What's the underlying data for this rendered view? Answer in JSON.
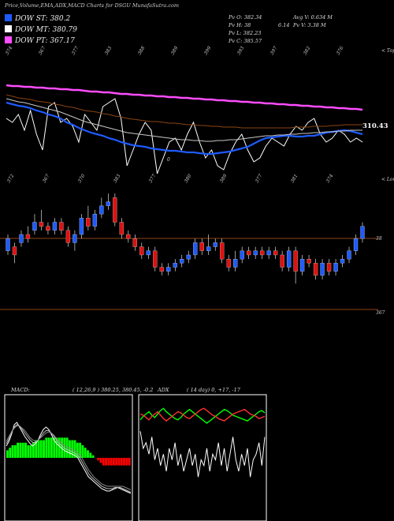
{
  "header": {
    "title": "Price,Volume,EMA,ADX,MACD Charts for DSGU MunafaSutra.com"
  },
  "legend": [
    {
      "label": "DOW ST: 380.2",
      "color": "#1e5bff"
    },
    {
      "label": "DOW MT: 380.79",
      "color": "#ffffff"
    },
    {
      "label": "DOW PT: 367.17",
      "color": "#ff4dff"
    }
  ],
  "stats": {
    "pv_o": "Pv  O: 382.34",
    "pv_h": "Pv  H: 38",
    "pv_l": "Pv  L: 382.23",
    "pv_c": "Pv  C: 385.57",
    "avg_v": "Avg V: 0.634  M",
    "pv_v_pre": "6.14",
    "pv_v": "Pv  V: 3.38  M"
  },
  "colors": {
    "up": "#1e5bff",
    "down": "#e01010",
    "ema_st": "#1e5bff",
    "ema_mt": "#ffffff",
    "ema_lt": "#c8c8c8",
    "ema_brown": "#8b4513",
    "ema_pt": "#ff4dff",
    "level_line": "#8b4513",
    "macd_green": "#00ff00",
    "macd_red": "#ff0000",
    "adx_white": "#ffffff",
    "adx_green": "#00ff00",
    "adx_red": "#ff3030",
    "adx_brown": "#8b4513"
  },
  "chart_data": [
    {
      "type": "line",
      "name": "upper-volume-ema-panel",
      "top_labels": [
        "374",
        "367",
        "377",
        "383",
        "388",
        "389",
        "399",
        "393",
        "397",
        "382",
        "376"
      ],
      "top_right_label": "< Tops",
      "bottom_labels": [
        "372",
        "367",
        "370",
        "383",
        "377",
        "380",
        "389",
        "377",
        "381",
        "374"
      ],
      "bottom_right_label": "< Lows",
      "value_label": "310.43",
      "mid_label": "0",
      "series": [
        {
          "values": [
            180,
            175,
            185,
            165,
            190,
            160,
            140,
            195,
            200,
            175,
            180,
            170,
            150,
            185,
            175,
            165,
            195,
            200,
            205,
            180,
            120,
            140,
            160,
            175,
            165,
            110,
            130,
            150,
            155,
            140,
            160,
            175,
            150,
            130,
            140,
            120,
            115,
            135,
            150,
            160,
            140,
            125,
            130,
            145,
            155,
            150,
            145,
            160,
            170,
            165,
            175,
            180,
            160,
            150,
            155,
            165,
            160,
            150,
            155,
            150
          ]
        },
        {
          "values": [
            200,
            198,
            196,
            195,
            193,
            190,
            188,
            185,
            183,
            180,
            175,
            172,
            168,
            165,
            162,
            160,
            158,
            155,
            153,
            150,
            148,
            146,
            145,
            144,
            142,
            141,
            140,
            139,
            139,
            138,
            137,
            137,
            136,
            135,
            135,
            136,
            137,
            138,
            140,
            142,
            144,
            148,
            152,
            155,
            156,
            157,
            158,
            158,
            157,
            157,
            158,
            158,
            160,
            162,
            163,
            164,
            165,
            164,
            162,
            160
          ]
        },
        {
          "values": [
            205,
            203,
            201,
            200,
            198,
            196,
            194,
            192,
            190,
            188,
            185,
            182,
            179,
            176,
            174,
            172,
            170,
            168,
            166,
            164,
            162,
            161,
            160,
            159,
            158,
            157,
            156,
            155,
            154,
            153,
            153,
            152,
            152,
            151,
            151,
            152,
            152,
            153,
            153,
            154,
            155,
            156,
            157,
            158,
            158,
            159,
            159,
            160,
            160,
            161,
            161,
            162,
            162,
            163,
            163,
            164,
            164,
            165,
            165,
            165
          ]
        },
        {
          "values": [
            210,
            208,
            206,
            205,
            204,
            202,
            201,
            200,
            198,
            197,
            195,
            194,
            192,
            190,
            189,
            188,
            186,
            185,
            183,
            182,
            180,
            179,
            178,
            177,
            176,
            176,
            175,
            174,
            174,
            173,
            172,
            172,
            171,
            171,
            170,
            170,
            169,
            169,
            169,
            168,
            168,
            168,
            168,
            168,
            168,
            168,
            168,
            168,
            169,
            169,
            169,
            170,
            170,
            170,
            171,
            171,
            172,
            172,
            172,
            172
          ]
        },
        {
          "values": [
            222,
            221,
            221,
            220,
            220,
            219,
            219,
            218,
            218,
            217,
            217,
            216,
            216,
            215,
            214,
            214,
            213,
            213,
            212,
            211,
            211,
            210,
            210,
            209,
            209,
            208,
            208,
            207,
            207,
            206,
            206,
            205,
            205,
            204,
            204,
            203,
            203,
            202,
            202,
            201,
            201,
            200,
            200,
            199,
            199,
            198,
            198,
            197,
            197,
            196,
            196,
            195,
            195,
            194,
            194,
            193,
            193,
            192,
            192,
            191
          ]
        }
      ]
    },
    {
      "type": "candlestick",
      "name": "price-panel",
      "level_top": "38",
      "level_bottom": "367",
      "candles": [
        {
          "o": 380,
          "c": 383,
          "h": 384,
          "l": 379
        },
        {
          "o": 381,
          "c": 379,
          "h": 382,
          "l": 377
        },
        {
          "o": 382,
          "c": 384,
          "h": 385,
          "l": 381
        },
        {
          "o": 384,
          "c": 383,
          "h": 386,
          "l": 382
        },
        {
          "o": 385,
          "c": 387,
          "h": 389,
          "l": 384
        },
        {
          "o": 387,
          "c": 386,
          "h": 390,
          "l": 385
        },
        {
          "o": 386,
          "c": 385,
          "h": 387,
          "l": 384
        },
        {
          "o": 385,
          "c": 387,
          "h": 388,
          "l": 384
        },
        {
          "o": 387,
          "c": 385,
          "h": 388,
          "l": 384
        },
        {
          "o": 385,
          "c": 382,
          "h": 386,
          "l": 381
        },
        {
          "o": 382,
          "c": 384,
          "h": 385,
          "l": 380
        },
        {
          "o": 384,
          "c": 388,
          "h": 389,
          "l": 383
        },
        {
          "o": 388,
          "c": 386,
          "h": 391,
          "l": 385
        },
        {
          "o": 386,
          "c": 389,
          "h": 390,
          "l": 385
        },
        {
          "o": 389,
          "c": 391,
          "h": 393,
          "l": 388
        },
        {
          "o": 391,
          "c": 392,
          "h": 394,
          "l": 390
        },
        {
          "o": 393,
          "c": 387,
          "h": 394,
          "l": 386
        },
        {
          "o": 387,
          "c": 384,
          "h": 388,
          "l": 383
        },
        {
          "o": 384,
          "c": 383,
          "h": 385,
          "l": 382
        },
        {
          "o": 383,
          "c": 381,
          "h": 384,
          "l": 380
        },
        {
          "o": 381,
          "c": 379,
          "h": 382,
          "l": 378
        },
        {
          "o": 379,
          "c": 380,
          "h": 381,
          "l": 378
        },
        {
          "o": 380,
          "c": 376,
          "h": 381,
          "l": 375
        },
        {
          "o": 376,
          "c": 375,
          "h": 377,
          "l": 374
        },
        {
          "o": 375,
          "c": 376,
          "h": 377,
          "l": 374
        },
        {
          "o": 376,
          "c": 377,
          "h": 378,
          "l": 375
        },
        {
          "o": 377,
          "c": 378,
          "h": 379,
          "l": 376
        },
        {
          "o": 378,
          "c": 379,
          "h": 380,
          "l": 377
        },
        {
          "o": 379,
          "c": 382,
          "h": 383,
          "l": 378
        },
        {
          "o": 382,
          "c": 380,
          "h": 383,
          "l": 379
        },
        {
          "o": 380,
          "c": 381,
          "h": 384,
          "l": 379
        },
        {
          "o": 381,
          "c": 382,
          "h": 383,
          "l": 380
        },
        {
          "o": 382,
          "c": 378,
          "h": 383,
          "l": 377
        },
        {
          "o": 378,
          "c": 376,
          "h": 379,
          "l": 375
        },
        {
          "o": 376,
          "c": 378,
          "h": 380,
          "l": 375
        },
        {
          "o": 378,
          "c": 380,
          "h": 381,
          "l": 377
        },
        {
          "o": 380,
          "c": 379,
          "h": 381,
          "l": 378
        },
        {
          "o": 379,
          "c": 380,
          "h": 381,
          "l": 378
        },
        {
          "o": 380,
          "c": 379,
          "h": 381,
          "l": 378
        },
        {
          "o": 379,
          "c": 380,
          "h": 381,
          "l": 378
        },
        {
          "o": 380,
          "c": 379,
          "h": 381,
          "l": 378
        },
        {
          "o": 379,
          "c": 376,
          "h": 380,
          "l": 375
        },
        {
          "o": 376,
          "c": 380,
          "h": 381,
          "l": 375
        },
        {
          "o": 380,
          "c": 375,
          "h": 381,
          "l": 372
        },
        {
          "o": 375,
          "c": 378,
          "h": 379,
          "l": 374
        },
        {
          "o": 378,
          "c": 377,
          "h": 379,
          "l": 376
        },
        {
          "o": 377,
          "c": 374,
          "h": 378,
          "l": 373
        },
        {
          "o": 374,
          "c": 377,
          "h": 378,
          "l": 373
        },
        {
          "o": 377,
          "c": 375,
          "h": 378,
          "l": 374
        },
        {
          "o": 375,
          "c": 377,
          "h": 378,
          "l": 374
        },
        {
          "o": 377,
          "c": 378,
          "h": 379,
          "l": 376
        },
        {
          "o": 378,
          "c": 380,
          "h": 381,
          "l": 377
        },
        {
          "o": 380,
          "c": 383,
          "h": 384,
          "l": 379
        },
        {
          "o": 383,
          "c": 386,
          "h": 387,
          "l": 382
        }
      ]
    },
    {
      "type": "bar",
      "name": "macd-panel",
      "title": "MACD:",
      "params": "( 12,26,9 ) 380.25,  380.45,  -0.2",
      "histogram": [
        3,
        4,
        5,
        5,
        6,
        6,
        6,
        6,
        5,
        5,
        6,
        7,
        7,
        7,
        7,
        8,
        8,
        8,
        8,
        8,
        8,
        8,
        8,
        8,
        7,
        7,
        7,
        6,
        6,
        5,
        4,
        3,
        2,
        1,
        0,
        -1,
        -2,
        -3,
        -3,
        -3,
        -3,
        -3,
        -3,
        -3,
        -3,
        -3,
        -3,
        -3
      ],
      "series": [
        {
          "values": [
            10,
            14,
            20,
            28,
            30,
            26,
            22,
            18,
            15,
            12,
            10,
            12,
            15,
            20,
            24,
            26,
            24,
            20,
            15,
            12,
            10,
            8,
            6,
            5,
            4,
            3,
            2,
            0,
            -4,
            -8,
            -12,
            -16,
            -18,
            -20,
            -22,
            -24,
            -26,
            -27,
            -28,
            -28,
            -27,
            -26,
            -25,
            -26,
            -27,
            -28,
            -29,
            -30
          ]
        },
        {
          "values": [
            12,
            16,
            22,
            26,
            28,
            27,
            24,
            21,
            18,
            15,
            13,
            13,
            15,
            18,
            21,
            23,
            23,
            21,
            18,
            15,
            12,
            10,
            8,
            7,
            6,
            5,
            4,
            2,
            -1,
            -5,
            -9,
            -13,
            -16,
            -18,
            -20,
            -22,
            -24,
            -25,
            -26,
            -26,
            -26,
            -25,
            -25,
            -25,
            -26,
            -27,
            -28,
            -29
          ]
        },
        {
          "values": [
            14,
            18,
            22,
            25,
            27,
            27,
            25,
            23,
            20,
            17,
            15,
            14,
            15,
            17,
            19,
            21,
            22,
            21,
            19,
            16,
            14,
            12,
            10,
            9,
            8,
            7,
            6,
            4,
            2,
            -2,
            -6,
            -10,
            -13,
            -16,
            -18,
            -20,
            -22,
            -23,
            -24,
            -24,
            -24,
            -24,
            -24,
            -24,
            -24,
            -25,
            -26,
            -27
          ]
        }
      ]
    },
    {
      "type": "line",
      "name": "adx-panel",
      "title": "ADX",
      "params": "( 14  day) 0,  +17,  -17",
      "series": [
        {
          "values": [
            75,
            60,
            65,
            55,
            70,
            50,
            60,
            45,
            55,
            40,
            60,
            50,
            65,
            45,
            55,
            40,
            50,
            60,
            45,
            55,
            35,
            50,
            45,
            60,
            40,
            55,
            50,
            65,
            45,
            60,
            40,
            55,
            70,
            50,
            40,
            55,
            45,
            60,
            35,
            50,
            55,
            65,
            45,
            70
          ]
        },
        {
          "values": [
            85,
            88,
            90,
            92,
            89,
            87,
            90,
            93,
            95,
            92,
            90,
            88,
            86,
            85,
            87,
            90,
            92,
            94,
            92,
            90,
            88,
            86,
            84,
            82,
            84,
            86,
            88,
            90,
            92,
            94,
            93,
            91,
            89,
            88,
            87,
            86,
            85,
            84,
            86,
            88,
            90,
            92,
            93,
            91
          ]
        },
        {
          "values": [
            90,
            89,
            87,
            85,
            88,
            90,
            92,
            89,
            86,
            84,
            86,
            88,
            90,
            92,
            91,
            89,
            87,
            86,
            88,
            90,
            92,
            94,
            95,
            93,
            91,
            89,
            88,
            86,
            85,
            84,
            86,
            88,
            90,
            91,
            92,
            93,
            94,
            92,
            90,
            89,
            88,
            86,
            87,
            88
          ]
        }
      ]
    }
  ]
}
